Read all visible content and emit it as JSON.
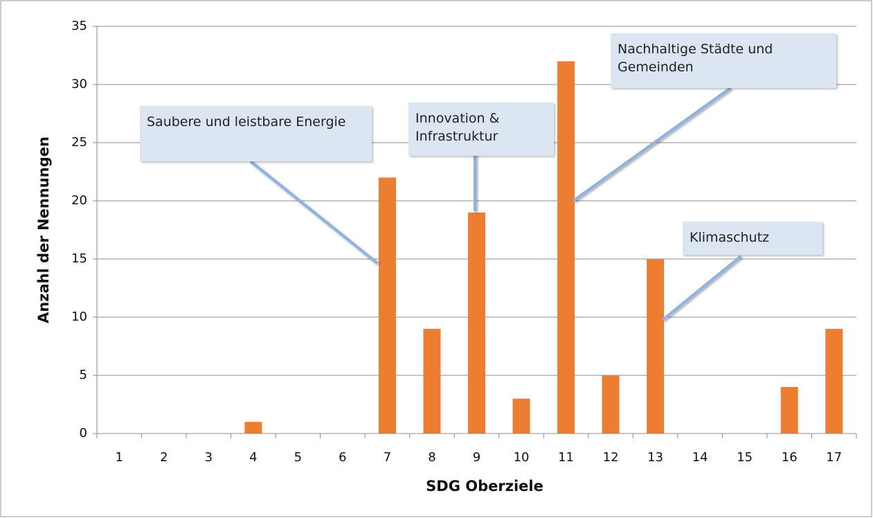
{
  "chart_data": {
    "type": "bar",
    "xlabel": "SDG Oberziele",
    "ylabel": "Anzahl der Nennungen",
    "categories": [
      1,
      2,
      3,
      4,
      5,
      6,
      7,
      8,
      9,
      10,
      11,
      12,
      13,
      14,
      15,
      16,
      17
    ],
    "values": [
      0,
      0,
      0,
      1,
      0,
      0,
      22,
      9,
      19,
      3,
      32,
      5,
      15,
      0,
      0,
      4,
      9
    ],
    "color": "#ed7d31",
    "ylim": [
      0,
      35
    ],
    "yticks": [
      0,
      5,
      10,
      15,
      20,
      25,
      30,
      35
    ],
    "grid": true,
    "annotations": [
      "Saubere und leistbare Energie",
      "Innovation & Infrastruktur",
      "Nachhaltige Städte und Gemeinden",
      "Klimaschutz"
    ]
  }
}
